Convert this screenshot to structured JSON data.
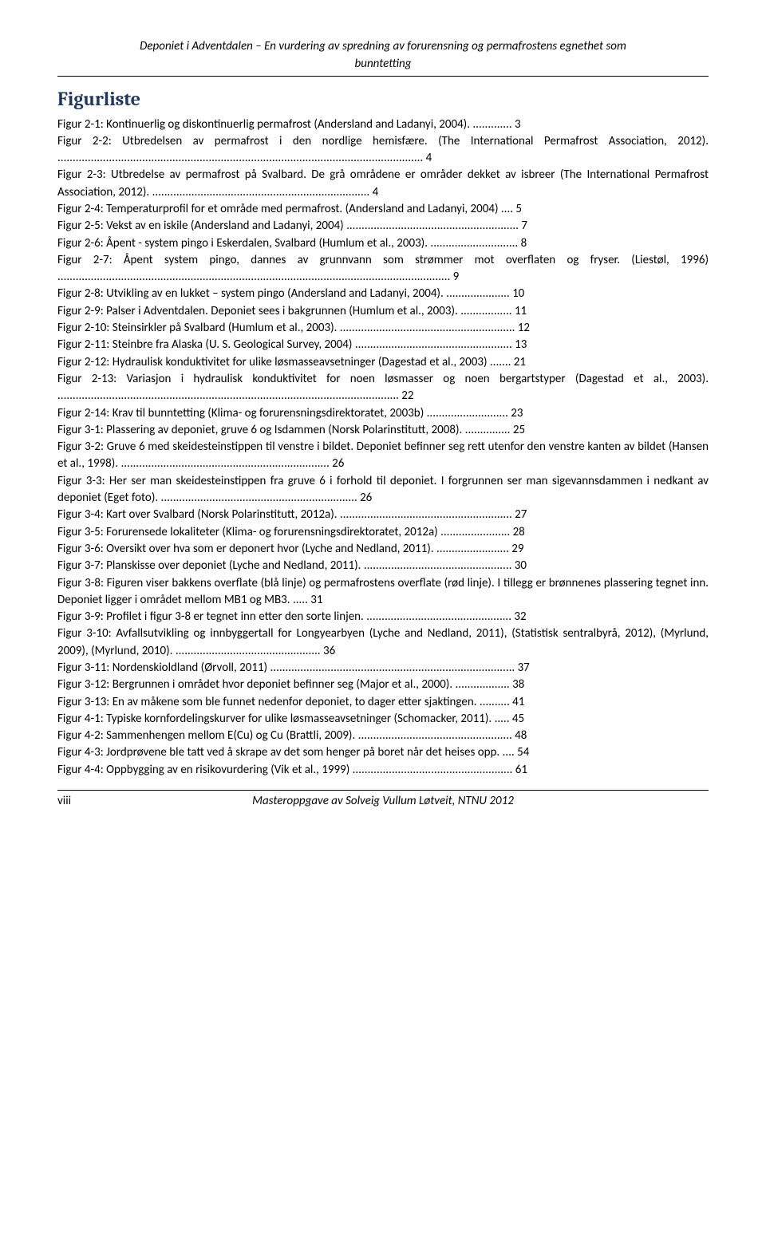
{
  "header": {
    "title_line1": "Deponiet i Adventdalen – En vurdering av spredning av forurensning og permafrostens egnethet som",
    "title_line2": "bunntetting"
  },
  "section_heading": "Figurliste",
  "entries": [
    {
      "text": "Figur 2-1: Kontinuerlig og diskontinuerlig permafrost (Andersland and Ladanyi, 2004). ............. 3"
    },
    {
      "text": "Figur 2-2: Utbredelsen av permafrost i den nordlige hemisfære. (The International Permafrost Association, 2012). ......................................................................................................................... 4"
    },
    {
      "text": "Figur 2-3: Utbredelse av permafrost på Svalbard. De grå områdene er områder dekket av isbreer (The International Permafrost Association, 2012). ........................................................................ 4"
    },
    {
      "text": "Figur 2-4: Temperaturprofil for et område med permafrost. (Andersland and Ladanyi, 2004) .... 5"
    },
    {
      "text": "Figur 2-5: Vekst av en iskile (Andersland and Ladanyi, 2004) ......................................................... 7"
    },
    {
      "text": "Figur 2-6: Åpent - system pingo i Eskerdalen, Svalbard (Humlum et al., 2003). ............................. 8"
    },
    {
      "text": "Figur 2-7: Åpent system pingo, dannes av grunnvann som strømmer mot overflaten og fryser. (Liestøl, 1996) .................................................................................................................................. 9"
    },
    {
      "text": "Figur 2-8: Utvikling av en lukket – system pingo (Andersland and Ladanyi, 2004). ..................... 10"
    },
    {
      "text": "Figur 2-9: Palser i Adventdalen. Deponiet sees i bakgrunnen (Humlum et al., 2003). ................. 11"
    },
    {
      "text": "Figur 2-10: Steinsirkler på Svalbard (Humlum et al., 2003). .......................................................... 12"
    },
    {
      "text": "Figur 2-11: Steinbre fra Alaska (U. S. Geological Survey, 2004) .................................................... 13"
    },
    {
      "text": "Figur 2-12: Hydraulisk konduktivitet for ulike løsmasseavsetninger (Dagestad et al., 2003) ....... 21"
    },
    {
      "text": "Figur 2-13: Variasjon i hydraulisk konduktivitet for noen løsmasser og noen bergartstyper (Dagestad et al., 2003). ................................................................................................................. 22"
    },
    {
      "text": "Figur 2-14: Krav til bunntetting (Klima- og forurensningsdirektoratet, 2003b) ........................... 23"
    },
    {
      "text": "Figur 3-1: Plassering av deponiet, gruve 6 og Isdammen (Norsk Polarinstitutt, 2008). ............... 25"
    },
    {
      "text": "Figur 3-2: Gruve 6 med skeidesteinstippen til venstre i bildet. Deponiet befinner seg rett utenfor den venstre kanten av bildet (Hansen et al., 1998). ..................................................................... 26"
    },
    {
      "text": "Figur 3-3: Her ser man skeidesteinstippen fra gruve 6 i forhold til deponiet. I forgrunnen ser man sigevannsdammen i nedkant av deponiet (Eget foto). ................................................................. 26"
    },
    {
      "text": "Figur 3-4: Kart over Svalbard (Norsk Polarinstitutt, 2012a). ......................................................... 27"
    },
    {
      "text": "Figur 3-5: Forurensede lokaliteter (Klima- og forurensningsdirektoratet, 2012a) ....................... 28"
    },
    {
      "text": "Figur 3-6: Oversikt over hva som er deponert hvor (Lyche and Nedland, 2011). ........................ 29"
    },
    {
      "text": "Figur 3-7: Planskisse over deponiet (Lyche and Nedland, 2011). ................................................. 30"
    },
    {
      "text": "Figur 3-8: Figuren viser bakkens overflate (blå linje) og permafrostens overflate (rød linje). I tillegg er brønnenes plassering tegnet inn. Deponiet ligger i området mellom MB1 og MB3. ..... 31"
    },
    {
      "text": "Figur 3-9: Profilet i figur 3-8 er tegnet inn etter den sorte linjen. ................................................ 32"
    },
    {
      "text": "Figur 3-10: Avfallsutvikling og innbyggertall for Longyearbyen (Lyche and Nedland, 2011), (Statistisk sentralbyrå, 2012), (Myrlund, 2009), (Myrlund, 2010). ................................................ 36"
    },
    {
      "text": "Figur 3-11: Nordenskioldland (Ørvoll, 2011) ................................................................................. 37"
    },
    {
      "text": "Figur 3-12: Bergrunnen i området hvor deponiet befinner seg (Major et al., 2000). .................. 38"
    },
    {
      "text": "Figur 3-13: En av måkene som ble funnet nedenfor deponiet, to dager etter sjaktingen. .......... 41"
    },
    {
      "text": "Figur 4-1: Typiske kornfordelingskurver for ulike løsmasseavsetninger (Schomacker, 2011). ..... 45"
    },
    {
      "text": "Figur 4-2: Sammenhengen mellom E(Cu) og Cu (Brattli, 2009). ................................................... 48"
    },
    {
      "text": "Figur 4-3: Jordprøvene ble tatt ved å skrape av det som henger på boret når det heises opp. .... 54"
    },
    {
      "text": "Figur 4-4: Oppbygging av en risikovurdering (Vik et al., 1999) ..................................................... 61"
    }
  ],
  "footer": {
    "page": "viii",
    "title": "Masteroppgave av Solveig Vullum Løtveit, NTNU 2012"
  }
}
